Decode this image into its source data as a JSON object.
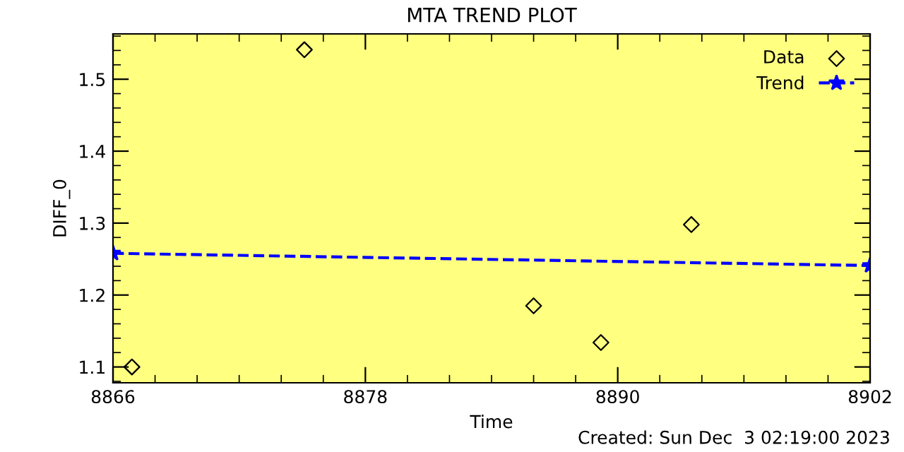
{
  "chart_data": {
    "type": "scatter",
    "title": "MTA TREND PLOT",
    "xlabel": "Time",
    "ylabel": "DIFF_0",
    "xlim": [
      8866,
      8902
    ],
    "xticks": [
      8866,
      8878,
      8890,
      8902
    ],
    "ylim": [
      1.078,
      1.563
    ],
    "yticks": [
      1.1,
      1.2,
      1.3,
      1.4,
      1.5
    ],
    "series": [
      {
        "name": "Data",
        "color": "#000000",
        "marker": "diamond",
        "x": [
          8866.9,
          8875.1,
          8886.0,
          8889.2,
          8893.5
        ],
        "values": [
          1.1,
          1.541,
          1.185,
          1.134,
          1.298
        ]
      },
      {
        "name": "Trend",
        "type": "line",
        "color": "#0000ff",
        "marker": "star",
        "line_style": "dashed",
        "x": [
          8866,
          8902
        ],
        "values": [
          1.258,
          1.241
        ]
      }
    ],
    "legend": "top right",
    "grid": false,
    "annotations": [
      "Created: Sun Dec  3 02:19:00 2023"
    ]
  }
}
